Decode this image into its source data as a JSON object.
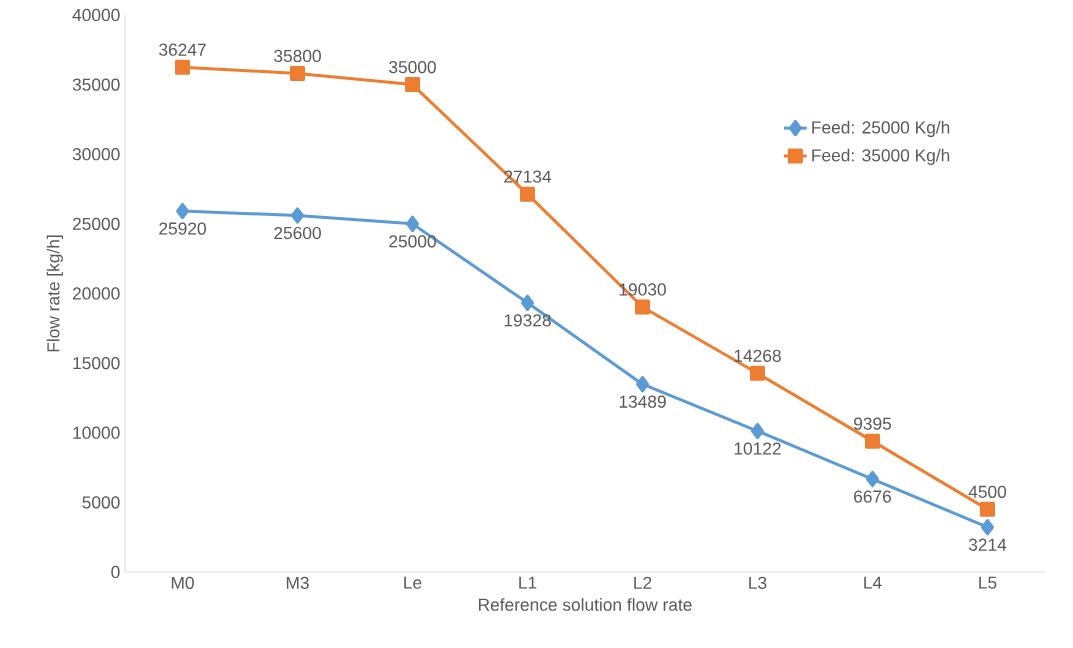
{
  "chart_data": {
    "type": "line",
    "xlabel": "Reference solution flow rate",
    "ylabel": "Flow rate [kg/h]",
    "categories": [
      "M0",
      "M3",
      "Le",
      "L1",
      "L2",
      "L3",
      "L4",
      "L5"
    ],
    "series": [
      {
        "name": "Feed: 25000 Kg/h",
        "color": "#5b9bd5",
        "marker": "diamond",
        "values": [
          25920,
          25600,
          25000,
          19328,
          13489,
          10122,
          6676,
          3214
        ]
      },
      {
        "name": "Feed: 35000 Kg/h",
        "color": "#ed7d31",
        "marker": "square",
        "values": [
          36247,
          35800,
          35000,
          27134,
          19030,
          14268,
          9395,
          4500
        ]
      }
    ],
    "ylim": [
      0,
      40000
    ],
    "yticks": [
      0,
      5000,
      10000,
      15000,
      20000,
      25000,
      30000,
      35000,
      40000
    ],
    "data_labels": true,
    "legend": "top right",
    "grid": false
  }
}
